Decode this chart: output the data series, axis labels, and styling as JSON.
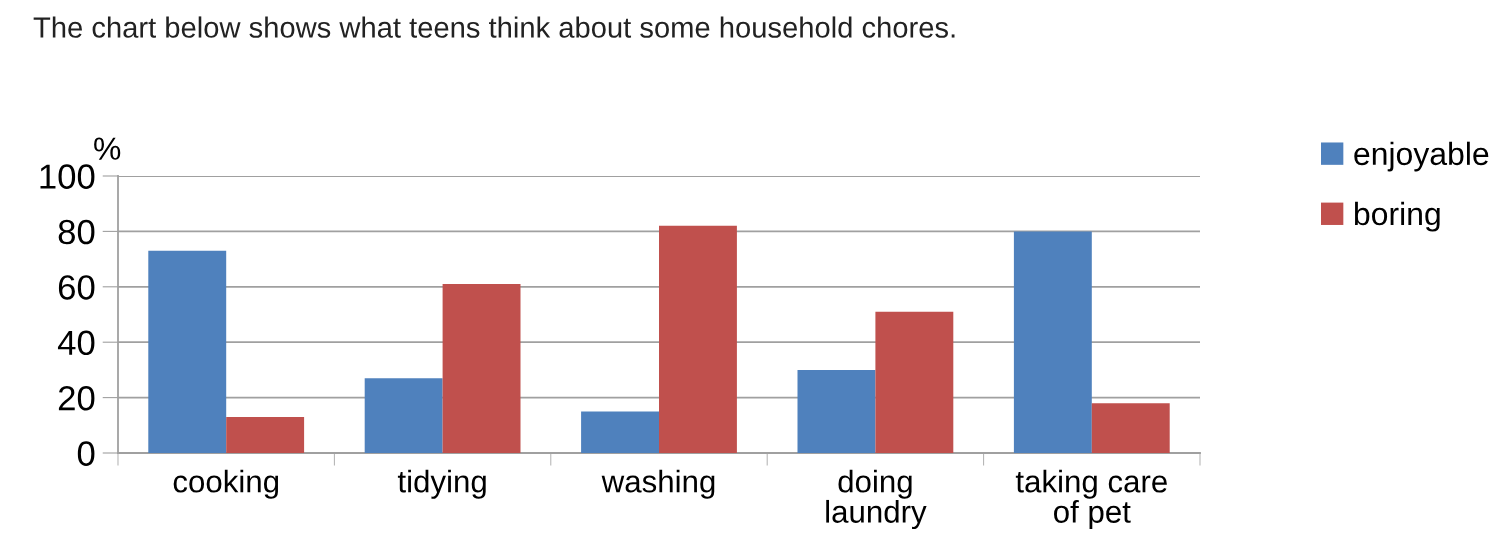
{
  "chart_data": {
    "type": "bar",
    "title": "The chart below shows what teens think about some household chores.",
    "ylabel": "%",
    "categories": [
      "cooking",
      "tidying",
      "washing",
      "doing\nlaundry",
      "taking care\nof pet"
    ],
    "series": [
      {
        "name": "enjoyable",
        "color": "#4f81bd",
        "values": [
          73,
          27,
          15,
          30,
          80
        ]
      },
      {
        "name": "boring",
        "color": "#c0504d",
        "values": [
          13,
          61,
          82,
          51,
          18
        ]
      }
    ],
    "ylim": [
      0,
      100
    ],
    "yticks": [
      0,
      20,
      40,
      60,
      80,
      100
    ],
    "grid": "y",
    "legend": "top right"
  }
}
